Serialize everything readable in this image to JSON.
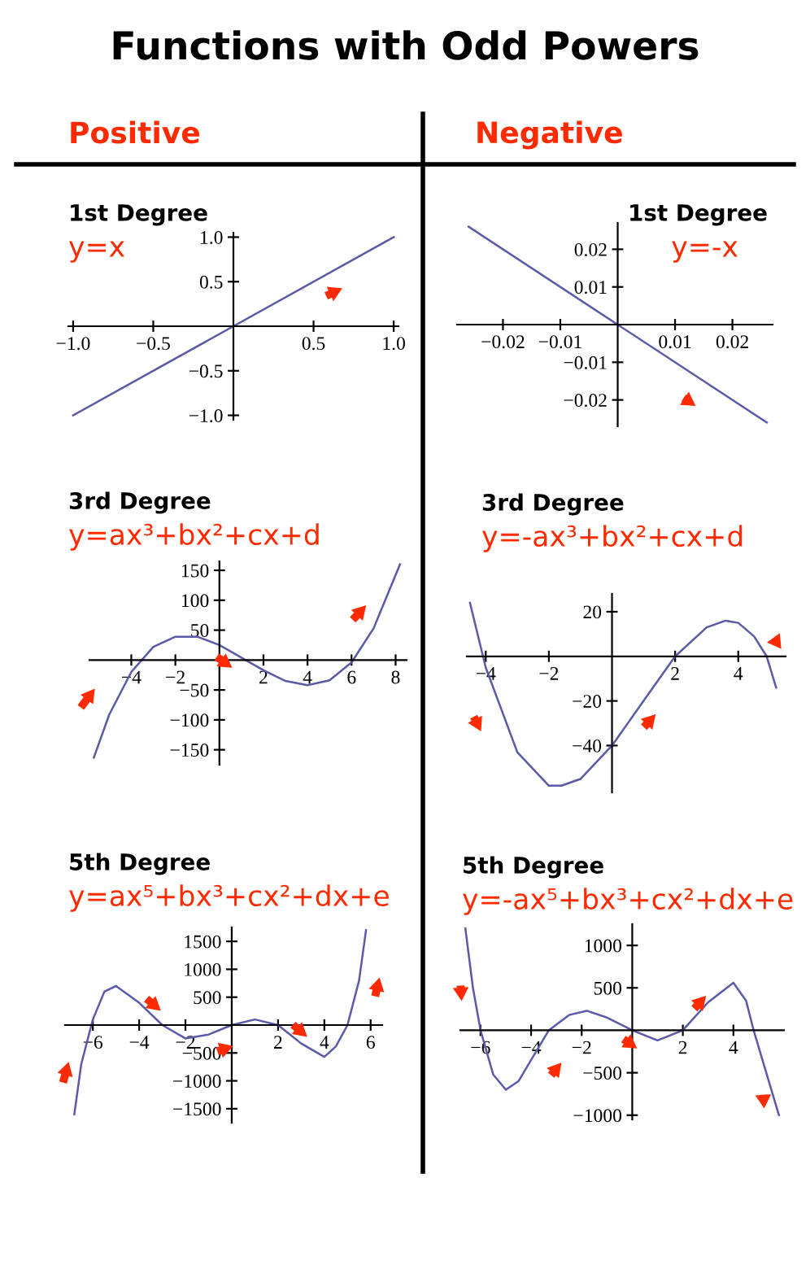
{
  "chart_data": [
    {
      "type": "line",
      "title": "1st Degree",
      "subtitle": "y=x",
      "annotations": [
        "Functions with Odd Powers",
        "Positive"
      ],
      "grid": false,
      "legend": false,
      "marker": "none",
      "line_style": "solid",
      "x": [
        -1.0,
        1.0
      ],
      "series": [
        {
          "color": "#5a5aa8",
          "values": [
            -1.0,
            1.0
          ]
        }
      ],
      "xlim": [
        -1.03,
        1.03
      ],
      "ylim": [
        -1.05,
        1.05
      ],
      "xticks": [
        {
          "value": -1.0,
          "label": "−1.0"
        },
        {
          "value": -0.5,
          "label": "−0.5"
        },
        {
          "value": 0.5,
          "label": "0.5"
        },
        {
          "value": 1.0,
          "label": "1.0"
        }
      ],
      "yticks": [
        {
          "value": -1.0,
          "label": "−1.0"
        },
        {
          "value": -0.5,
          "label": "−0.5"
        },
        {
          "value": 0.5,
          "label": "0.5"
        },
        {
          "value": 1.0,
          "label": "1.0"
        }
      ]
    },
    {
      "type": "line",
      "title": "1st Degree",
      "subtitle": "y=-x",
      "annotations": [
        "Negative"
      ],
      "grid": false,
      "legend": false,
      "marker": "none",
      "line_style": "solid",
      "x": [
        -0.026,
        0.026
      ],
      "series": [
        {
          "color": "#5a5aa8",
          "values": [
            0.026,
            -0.026
          ]
        }
      ],
      "xlim": [
        -0.028,
        0.027
      ],
      "ylim": [
        -0.027,
        0.027
      ],
      "xticks": [
        {
          "value": -0.02,
          "label": "−0.02"
        },
        {
          "value": -0.01,
          "label": "−0.01"
        },
        {
          "value": 0.01,
          "label": "0.01"
        },
        {
          "value": 0.02,
          "label": "0.02"
        }
      ],
      "yticks": [
        {
          "value": -0.02,
          "label": "−0.02"
        },
        {
          "value": -0.01,
          "label": "−0.01"
        },
        {
          "value": 0.01,
          "label": "0.01"
        },
        {
          "value": 0.02,
          "label": "0.02"
        }
      ]
    },
    {
      "type": "line",
      "title": "3rd Degree",
      "subtitle": "y=ax³+bx²+cx+d",
      "grid": false,
      "legend": false,
      "marker": "none",
      "line_style": "solid",
      "x": [
        -5.7,
        -5,
        -4,
        -3,
        -2,
        -1,
        0,
        1,
        2,
        3,
        4,
        5,
        6,
        7,
        8.2
      ],
      "series": [
        {
          "color": "#5a5aa8",
          "values": [
            -163,
            -91,
            -20,
            22,
            39,
            39,
            25,
            4,
            -17,
            -35,
            -42,
            -34,
            -4,
            53,
            160
          ]
        }
      ],
      "xlim": [
        -5.9,
        8.5
      ],
      "ylim": [
        -175,
        165
      ],
      "xticks": [
        {
          "value": -4,
          "label": "−4"
        },
        {
          "value": -2,
          "label": "−2"
        },
        {
          "value": 2,
          "label": "2"
        },
        {
          "value": 4,
          "label": "4"
        },
        {
          "value": 6,
          "label": "6"
        },
        {
          "value": 8,
          "label": "8"
        }
      ],
      "yticks": [
        {
          "value": -150,
          "label": "−150"
        },
        {
          "value": -100,
          "label": "−100"
        },
        {
          "value": -50,
          "label": "−50"
        },
        {
          "value": 50,
          "label": "50"
        },
        {
          "value": 100,
          "label": "100"
        },
        {
          "value": 150,
          "label": "150"
        }
      ]
    },
    {
      "type": "line",
      "title": "3rd Degree",
      "subtitle": "y=-ax³+bx²+cx+d",
      "grid": false,
      "legend": false,
      "marker": "none",
      "line_style": "solid",
      "x": [
        -4.5,
        -4,
        -3,
        -2,
        -1.6,
        -1,
        0,
        1,
        2,
        3,
        3.6,
        4,
        4.5,
        4.9,
        5.2
      ],
      "series": [
        {
          "color": "#5a5aa8",
          "values": [
            24,
            -5,
            -43,
            -58,
            -58,
            -55,
            -40,
            -20,
            0,
            13,
            16,
            15,
            9,
            0,
            -14
          ]
        }
      ],
      "xlim": [
        -4.6,
        5.5
      ],
      "ylim": [
        -61,
        28
      ],
      "xticks": [
        {
          "value": -4,
          "label": "−4"
        },
        {
          "value": -2,
          "label": "−2"
        },
        {
          "value": 2,
          "label": "2"
        },
        {
          "value": 4,
          "label": "4"
        }
      ],
      "yticks": [
        {
          "value": -40,
          "label": "−40"
        },
        {
          "value": -20,
          "label": "−20"
        },
        {
          "value": 20,
          "label": "20"
        }
      ]
    },
    {
      "type": "line",
      "title": "5th Degree",
      "subtitle": "y=ax⁵+bx³+cx²+dx+e",
      "grid": false,
      "legend": false,
      "marker": "none",
      "line_style": "solid",
      "x": [
        -6.8,
        -6.5,
        -6,
        -5.5,
        -5,
        -4,
        -3,
        -2,
        -1,
        0,
        1,
        2,
        3,
        4,
        4.5,
        5,
        5.5,
        5.8
      ],
      "series": [
        {
          "color": "#5a5aa8",
          "values": [
            -1600,
            -700,
            100,
            600,
            700,
            400,
            0,
            -240,
            -170,
            0,
            100,
            0,
            -330,
            -570,
            -380,
            0,
            800,
            1700
          ]
        }
      ],
      "xlim": [
        -7.2,
        6.5
      ],
      "ylim": [
        -1750,
        1750
      ],
      "xticks": [
        {
          "value": -6,
          "label": "−6"
        },
        {
          "value": -4,
          "label": "−4"
        },
        {
          "value": -2,
          "label": "−2"
        },
        {
          "value": 2,
          "label": "2"
        },
        {
          "value": 4,
          "label": "4"
        },
        {
          "value": 6,
          "label": "6"
        }
      ],
      "yticks": [
        {
          "value": -1500,
          "label": "−1500"
        },
        {
          "value": -1000,
          "label": "−1000"
        },
        {
          "value": -500,
          "label": "−500"
        },
        {
          "value": 500,
          "label": "500"
        },
        {
          "value": 1000,
          "label": "1000"
        },
        {
          "value": 1500,
          "label": "1500"
        }
      ]
    },
    {
      "type": "line",
      "title": "5th Degree",
      "subtitle": "y=-ax⁵+bx³+cx²+dx+e",
      "grid": false,
      "legend": false,
      "marker": "none",
      "line_style": "solid",
      "x": [
        -6.6,
        -6.3,
        -6,
        -5.5,
        -5,
        -4.5,
        -4,
        -3.3,
        -2.5,
        -1.8,
        -1,
        0,
        1,
        2,
        3,
        4,
        4.5,
        4.8,
        5.3,
        5.8
      ],
      "series": [
        {
          "color": "#5a5aa8",
          "values": [
            1200,
            500,
            0,
            -520,
            -700,
            -600,
            -350,
            0,
            180,
            230,
            150,
            0,
            -120,
            0,
            330,
            560,
            350,
            0,
            -500,
            -1000
          ]
        }
      ],
      "xlim": [
        -6.8,
        6.0
      ],
      "ylim": [
        -1050,
        1250
      ],
      "xticks": [
        {
          "value": -6,
          "label": "−6"
        },
        {
          "value": -4,
          "label": "−4"
        },
        {
          "value": -2,
          "label": "−2"
        },
        {
          "value": 2,
          "label": "2"
        },
        {
          "value": 4,
          "label": "4"
        }
      ],
      "yticks": [
        {
          "value": -1000,
          "label": "−1000"
        },
        {
          "value": -500,
          "label": "−500"
        },
        {
          "value": 500,
          "label": "500"
        },
        {
          "value": 1000,
          "label": "1000"
        }
      ]
    }
  ]
}
